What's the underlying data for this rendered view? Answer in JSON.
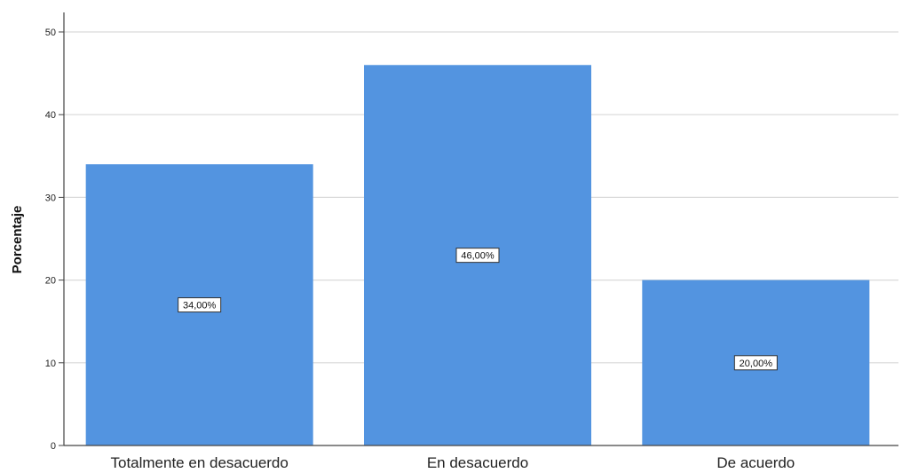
{
  "chart_data": {
    "type": "bar",
    "categories": [
      "Totalmente en desacuerdo",
      "En desacuerdo",
      "De acuerdo"
    ],
    "values": [
      34,
      46,
      20
    ],
    "data_labels": [
      "34,00%",
      "46,00%",
      "20,00%"
    ],
    "ylabel": "Porcentaje",
    "ylim": [
      0,
      50
    ],
    "yticks": [
      0,
      10,
      20,
      30,
      40,
      50
    ],
    "ytick_labels": [
      "0",
      "10",
      "20",
      "30",
      "40",
      "50"
    ],
    "grid": true,
    "legend": "none",
    "bar_color": "#5394e0"
  }
}
